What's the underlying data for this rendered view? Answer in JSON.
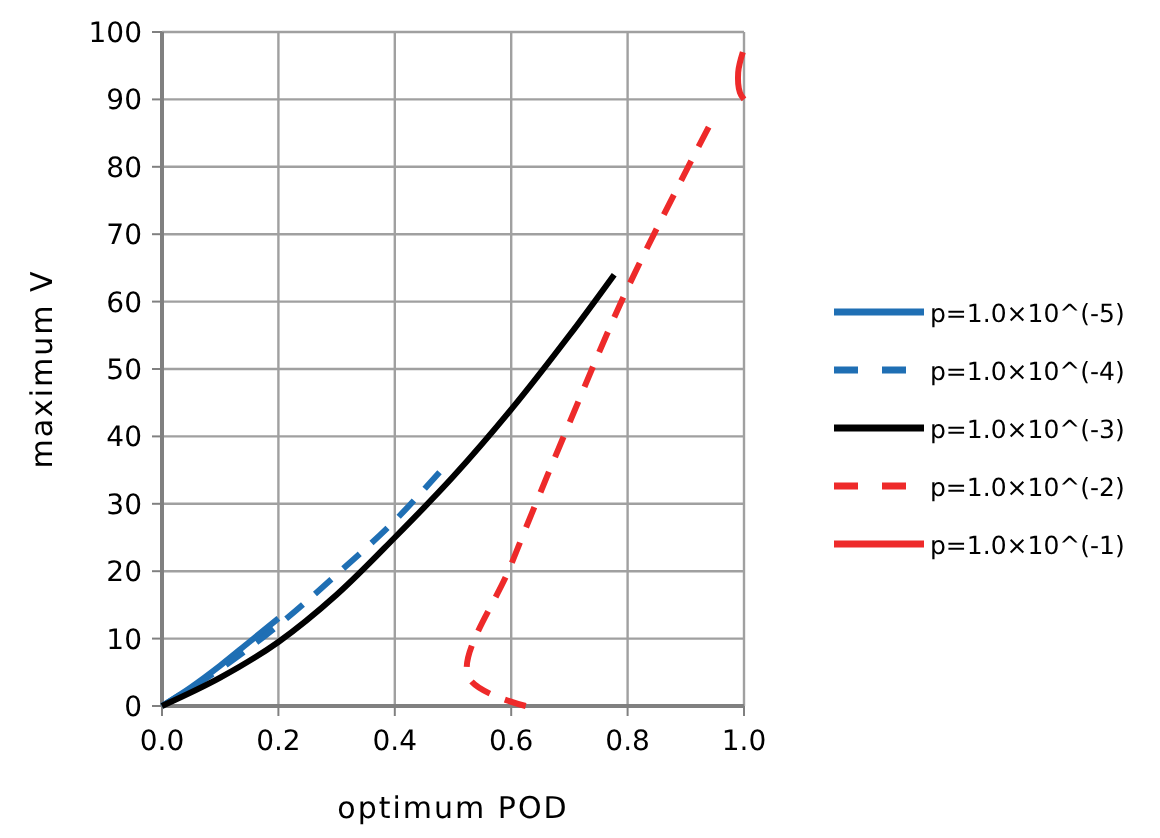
{
  "chart_data": {
    "type": "line",
    "xlabel": "optimum POD",
    "ylabel": "maximum V",
    "xlim": [
      0,
      1
    ],
    "ylim": [
      0,
      100
    ],
    "xticks": [
      {
        "value": 0,
        "label": "0.0"
      },
      {
        "value": 0.2,
        "label": "0.2"
      },
      {
        "value": 0.4,
        "label": "0.4"
      },
      {
        "value": 0.6,
        "label": "0.6"
      },
      {
        "value": 0.8,
        "label": "0.8"
      },
      {
        "value": 1,
        "label": "1.0"
      }
    ],
    "yticks": [
      0,
      10,
      20,
      30,
      40,
      50,
      60,
      70,
      80,
      90,
      100
    ],
    "grid": true,
    "legend": "right",
    "series": [
      {
        "name": "p=1.0×10^(-5)",
        "color": "#1f6fb4",
        "line_style": "solid",
        "x": [
          0,
          0.05,
          0.1,
          0.15,
          0.2
        ],
        "values": [
          0,
          2.8,
          6,
          9.5,
          13
        ]
      },
      {
        "name": "p=1.0×10^(-4)",
        "color": "#1f6fb4",
        "line_style": "dashed",
        "x": [
          0,
          0.1,
          0.2,
          0.3,
          0.4,
          0.48
        ],
        "values": [
          0,
          5.5,
          12,
          19.5,
          27.5,
          35
        ]
      },
      {
        "name": "p=1.0×10^(-3)",
        "color": "#000000",
        "line_style": "solid",
        "x": [
          0,
          0.1,
          0.2,
          0.3,
          0.4,
          0.5,
          0.6,
          0.7,
          0.777
        ],
        "values": [
          0,
          4.2,
          9.5,
          16.5,
          25,
          34,
          44,
          55,
          64
        ]
      },
      {
        "name": "p=1.0×10^(-2)",
        "color": "#ee2a2a",
        "line_style": "dashed",
        "x": [
          0.625,
          0.526,
          0.6,
          0.7,
          0.8,
          0.94
        ],
        "values": [
          0,
          4.4,
          21,
          42,
          62,
          86
        ]
      },
      {
        "name": "p=1.0×10^(-1)",
        "color": "#ee2a2a",
        "line_style": "solid",
        "x": [
          0.998,
          0.99,
          0.993,
          1
        ],
        "values": [
          97,
          94,
          91,
          90
        ]
      }
    ]
  }
}
